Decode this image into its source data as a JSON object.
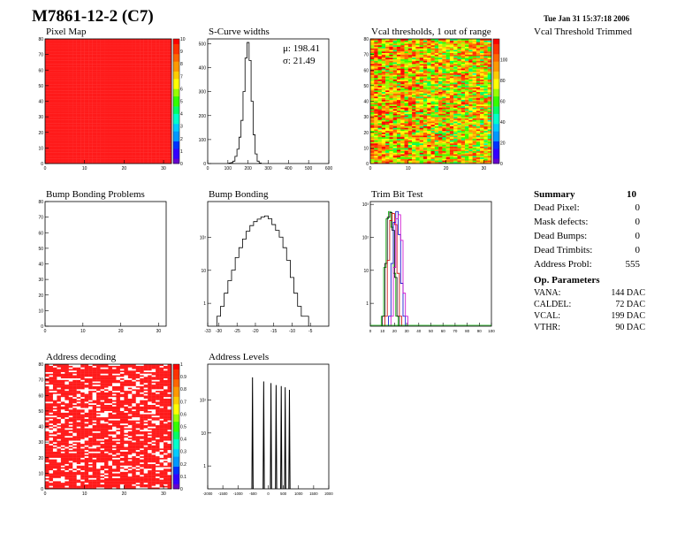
{
  "header": {
    "title": "M7861-12-2 (C7)",
    "date": "Tue Jan 31 15:37:18 2006"
  },
  "panels": {
    "pixel_map": "Pixel Map",
    "scurve": "S-Curve widths",
    "vcal_thr": "Vcal thresholds, 1 out of range",
    "vcal_trim": "Vcal Threshold Trimmed",
    "bb_problems": "Bump Bonding Problems",
    "bump_bonding": "Bump Bonding",
    "trim_bit": "Trim Bit Test",
    "addr_dec": "Address decoding",
    "addr_lvl": "Address Levels"
  },
  "stats": {
    "mu": "μ: 198.41",
    "sigma": "σ: 21.49"
  },
  "summary": {
    "title": "Summary",
    "total": "10",
    "rows": [
      {
        "label": "Dead Pixel:",
        "value": "0"
      },
      {
        "label": "Mask defects:",
        "value": "0"
      },
      {
        "label": "Dead Bumps:",
        "value": "0"
      },
      {
        "label": "Dead Trimbits:",
        "value": "0"
      },
      {
        "label": "Address Probl:",
        "value": "555"
      }
    ]
  },
  "op_params": {
    "title": "Op. Parameters",
    "rows": [
      {
        "label": "VANA:",
        "value": "144 DAC"
      },
      {
        "label": "CALDEL:",
        "value": "72 DAC"
      },
      {
        "label": "VCAL:",
        "value": "199 DAC"
      },
      {
        "label": "VTHR:",
        "value": "90 DAC"
      }
    ]
  },
  "chart_data": [
    {
      "id": "pixel_map",
      "type": "heatmap",
      "title": "Pixel Map",
      "xlim": [
        0,
        32
      ],
      "ylim": [
        0,
        80
      ],
      "xticks": [
        "0",
        "10",
        "20",
        "30"
      ],
      "yticks": [
        "0",
        "10",
        "20",
        "30",
        "40",
        "50",
        "60",
        "70",
        "80"
      ],
      "zlim": [
        0,
        10
      ],
      "zticks": [
        "0",
        "1",
        "2",
        "3",
        "4",
        "5",
        "6",
        "7",
        "8",
        "9",
        "10"
      ],
      "fill_value": 10
    },
    {
      "id": "scurve",
      "type": "line",
      "title": "S-Curve widths",
      "xlim": [
        0,
        600
      ],
      "ylim": [
        0,
        520
      ],
      "xticks": [
        "0",
        "100",
        "200",
        "300",
        "400",
        "500",
        "600"
      ],
      "yticks": [
        "0",
        "100",
        "200",
        "300",
        "400",
        "500"
      ],
      "x": [
        110,
        120,
        130,
        140,
        150,
        160,
        170,
        180,
        190,
        200,
        210,
        220,
        230,
        240,
        250,
        260
      ],
      "y": [
        2,
        4,
        10,
        30,
        60,
        110,
        180,
        300,
        440,
        505,
        430,
        260,
        120,
        40,
        10,
        2
      ]
    },
    {
      "id": "vcal_thr",
      "type": "heatmap",
      "title": "Vcal thresholds, 1 out of range",
      "xlim": [
        0,
        32
      ],
      "ylim": [
        0,
        80
      ],
      "xticks": [
        "0",
        "10",
        "20",
        "30"
      ],
      "yticks": [
        "0",
        "10",
        "20",
        "30",
        "40",
        "50",
        "60",
        "70",
        "80"
      ],
      "zlim": [
        0,
        120
      ],
      "zticks": [
        "0",
        "20",
        "40",
        "60",
        "80",
        "100"
      ],
      "value_range": [
        55,
        125
      ]
    },
    {
      "id": "bb_problems",
      "type": "heatmap",
      "title": "Bump Bonding Problems",
      "xlim": [
        0,
        32
      ],
      "ylim": [
        0,
        80
      ],
      "xticks": [
        "0",
        "10",
        "20",
        "30"
      ],
      "yticks": [
        "0",
        "10",
        "20",
        "30",
        "40",
        "50",
        "60",
        "70",
        "80"
      ]
    },
    {
      "id": "bump_bonding",
      "type": "line",
      "title": "Bump Bonding",
      "log_y": true,
      "xlim": [
        -33,
        0
      ],
      "ylim": [
        0.5,
        3000
      ],
      "xticks": [
        "-33",
        "-30",
        "-25",
        "-20",
        "-15",
        "-10",
        "-5"
      ],
      "yticks": [
        "1",
        "10",
        "10²"
      ],
      "x": [
        -30,
        -29,
        -28,
        -27,
        -26,
        -25,
        -24,
        -23,
        -22,
        -21,
        -20,
        -19,
        -18,
        -17,
        -16,
        -15,
        -14,
        -13,
        -12,
        -11,
        -10,
        -9,
        -8,
        -7,
        -6
      ],
      "y": [
        1,
        2,
        5,
        12,
        25,
        60,
        120,
        220,
        380,
        560,
        740,
        880,
        1020,
        1100,
        900,
        600,
        400,
        250,
        120,
        50,
        15,
        5,
        2,
        1,
        1
      ]
    },
    {
      "id": "trim_bit",
      "type": "line",
      "title": "Trim Bit Test",
      "log_y": true,
      "xlim": [
        0,
        100
      ],
      "ylim": [
        0.5,
        3000
      ],
      "xticks": [
        "0",
        "10",
        "20",
        "30",
        "40",
        "50",
        "60",
        "70",
        "80",
        "90",
        "100"
      ],
      "yticks": [
        "1",
        "10",
        "10²",
        "10³"
      ],
      "series": [
        {
          "color": "#00aa00",
          "x": [
            10,
            12,
            14,
            16,
            18,
            20,
            22
          ],
          "y": [
            1,
            30,
            900,
            1500,
            500,
            20,
            1
          ]
        },
        {
          "color": "#000000",
          "x": [
            11,
            13,
            15,
            17,
            19,
            21,
            23
          ],
          "y": [
            1,
            40,
            1000,
            1400,
            400,
            15,
            1
          ]
        },
        {
          "color": "#cc0000",
          "x": [
            13,
            15,
            17,
            19,
            21,
            23,
            25
          ],
          "y": [
            1,
            50,
            800,
            1300,
            600,
            20,
            1
          ]
        },
        {
          "color": "#0000cc",
          "x": [
            16,
            18,
            20,
            22,
            24,
            26,
            28
          ],
          "y": [
            1,
            40,
            700,
            1500,
            300,
            10,
            1
          ]
        },
        {
          "color": "#cc00cc",
          "x": [
            18,
            20,
            22,
            24,
            26,
            28,
            30
          ],
          "y": [
            1,
            30,
            900,
            1200,
            200,
            5,
            1
          ]
        }
      ]
    },
    {
      "id": "addr_dec",
      "type": "heatmap",
      "title": "Address decoding",
      "xlim": [
        0,
        32
      ],
      "ylim": [
        0,
        80
      ],
      "xticks": [
        "0",
        "10",
        "20",
        "30"
      ],
      "yticks": [
        "0",
        "10",
        "20",
        "30",
        "40",
        "50",
        "60",
        "70",
        "80"
      ],
      "zlim": [
        0,
        1
      ],
      "zticks": [
        "0",
        "0.1",
        "0.2",
        "0.3",
        "0.4",
        "0.5",
        "0.6",
        "0.7",
        "0.8",
        "0.9",
        "1"
      ],
      "bad_pixels": 555
    },
    {
      "id": "addr_lvl",
      "type": "line",
      "title": "Address Levels",
      "log_y": true,
      "xlim": [
        -2000,
        2000
      ],
      "ylim": [
        0.5,
        3000
      ],
      "xticks": [
        "-2000",
        "-1500",
        "-1000",
        "-500",
        "0",
        "500",
        "1000",
        "1500",
        "2000"
      ],
      "yticks": [
        "1",
        "10",
        "10²"
      ],
      "peaks": [
        -520,
        -150,
        90,
        260,
        430,
        560,
        700
      ],
      "heights": [
        1200,
        900,
        800,
        700,
        650,
        600,
        500
      ]
    }
  ]
}
